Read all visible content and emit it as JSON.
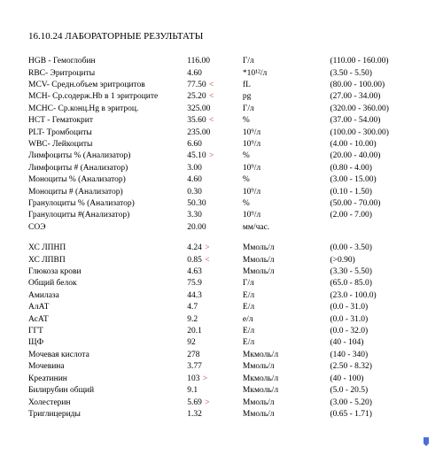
{
  "report": {
    "title": "16.10.24 ЛАБОРАТОРНЫЕ РЕЗУЛЬТАТЫ",
    "colors": {
      "background": "#ffffff",
      "text": "#000000",
      "flag": "#c0392b",
      "ribbon": "#4a6fd8"
    },
    "fonts": {
      "family": "Times New Roman",
      "title_size_pt": 11,
      "body_size_pt": 9.5
    },
    "columns": [
      "name",
      "value",
      "unit",
      "range"
    ],
    "section1": [
      {
        "name": "HGB - Гемоглобин",
        "value": "116.00",
        "flag": "",
        "unit": "Г/л",
        "range": "(110.00 - 160.00)"
      },
      {
        "name": "RBC- Эритроциты",
        "value": "4.60",
        "flag": "",
        "unit": "*10¹²/л",
        "range": "(3.50 - 5.50)"
      },
      {
        "name": "MCV- Средн.объем эритроцитов",
        "value": "77.50",
        "flag": " <",
        "unit": "fL",
        "range": "(80.00 - 100.00)"
      },
      {
        "name": "MCH- Ср.содерж.Hb в 1 эритроците",
        "value": "25.20",
        "flag": " <",
        "unit": "pg",
        "range": "(27.00 - 34.00)"
      },
      {
        "name": "MCHC- Ср.конц.Hg в эритроц.",
        "value": "325.00",
        "flag": "",
        "unit": "Г/л",
        "range": "(320.00 - 360.00)"
      },
      {
        "name": "HCT - Гематокрит",
        "value": "35.60",
        "flag": " <",
        "unit": "%",
        "range": "(37.00 - 54.00)"
      },
      {
        "name": "PLT- Тромбоциты",
        "value": "235.00",
        "flag": "",
        "unit": "10⁹/л",
        "range": "(100.00 - 300.00)"
      },
      {
        "name": "WBC- Лейкоциты",
        "value": "6.60",
        "flag": "",
        "unit": "10⁹/л",
        "range": "(4.00 - 10.00)"
      },
      {
        "name": "Лимфоциты % (Анализатор)",
        "value": "45.10",
        "flag": " >",
        "unit": "%",
        "range": "(20.00 - 40.00)"
      },
      {
        "name": "Лимфоциты # (Анализатор)",
        "value": "3.00",
        "flag": "",
        "unit": "10⁹/л",
        "range": "(0.80 - 4.00)"
      },
      {
        "name": "Моноциты % (Анализатор)",
        "value": "4.60",
        "flag": "",
        "unit": "%",
        "range": "(3.00 - 15.00)"
      },
      {
        "name": "Моноциты # (Анализатор)",
        "value": "0.30",
        "flag": "",
        "unit": "10⁹/л",
        "range": "(0.10 - 1.50)"
      },
      {
        "name": "Гранулоциты % (Анализатор)",
        "value": "50.30",
        "flag": "",
        "unit": "%",
        "range": "(50.00 - 70.00)"
      },
      {
        "name": "Гранулоциты #(Анализатор)",
        "value": "3.30",
        "flag": "",
        "unit": "10⁹/л",
        "range": "(2.00 - 7.00)"
      },
      {
        "name": "СОЭ",
        "value": "20.00",
        "flag": "",
        "unit": "мм/час.",
        "range": ""
      }
    ],
    "section2": [
      {
        "name": "ХС ЛПНП",
        "value": "4.24",
        "flag": " >",
        "unit": "Ммоль/л",
        "range": "(0.00 - 3.50)"
      },
      {
        "name": "ХС ЛПВП",
        "value": "0.85",
        "flag": " <",
        "unit": "Ммоль/л",
        "range": "(>0.90)"
      },
      {
        "name": "Глюкоза крови",
        "value": "4.63",
        "flag": "",
        "unit": "Ммоль/л",
        "range": "(3.30 - 5.50)"
      },
      {
        "name": "Общий белок",
        "value": "75.9",
        "flag": "",
        "unit": "Г/л",
        "range": "(65.0 - 85.0)"
      },
      {
        "name": "Амилаза",
        "value": "44.3",
        "flag": "",
        "unit": "Е/л",
        "range": "(23.0 - 100.0)"
      },
      {
        "name": "АлАТ",
        "value": "4.7",
        "flag": "",
        "unit": "Е/л",
        "range": "(0.0 - 31.0)"
      },
      {
        "name": "АсАТ",
        "value": "9.2",
        "flag": "",
        "unit": "е/л",
        "range": "(0.0 - 31.0)"
      },
      {
        "name": "ГГТ",
        "value": "20.1",
        "flag": "",
        "unit": "Е/л",
        "range": "(0.0 - 32.0)"
      },
      {
        "name": "ЩФ",
        "value": "92",
        "flag": "",
        "unit": "Е/л",
        "range": "(40 - 104)"
      },
      {
        "name": "Мочевая кислота",
        "value": "278",
        "flag": "",
        "unit": "Мкмоль/л",
        "range": "(140 - 340)"
      },
      {
        "name": "Мочевина",
        "value": "3.77",
        "flag": "",
        "unit": "Ммоль/л",
        "range": "(2.50 - 8.32)"
      },
      {
        "name": "Креатинин",
        "value": "103",
        "flag": " >",
        "unit": "Мкмоль/л",
        "range": "(40 - 100)"
      },
      {
        "name": "Билирубин общий",
        "value": "9.1",
        "flag": "",
        "unit": "Мкмоль/л",
        "range": "(5.0 - 20.5)"
      },
      {
        "name": "Холестерин",
        "value": "5.69",
        "flag": " >",
        "unit": "Ммоль/л",
        "range": "(3.00 - 5.20)"
      },
      {
        "name": "Триглицериды",
        "value": "1.32",
        "flag": "",
        "unit": "Ммоль/л",
        "range": "(0.65 - 1.71)"
      }
    ]
  }
}
